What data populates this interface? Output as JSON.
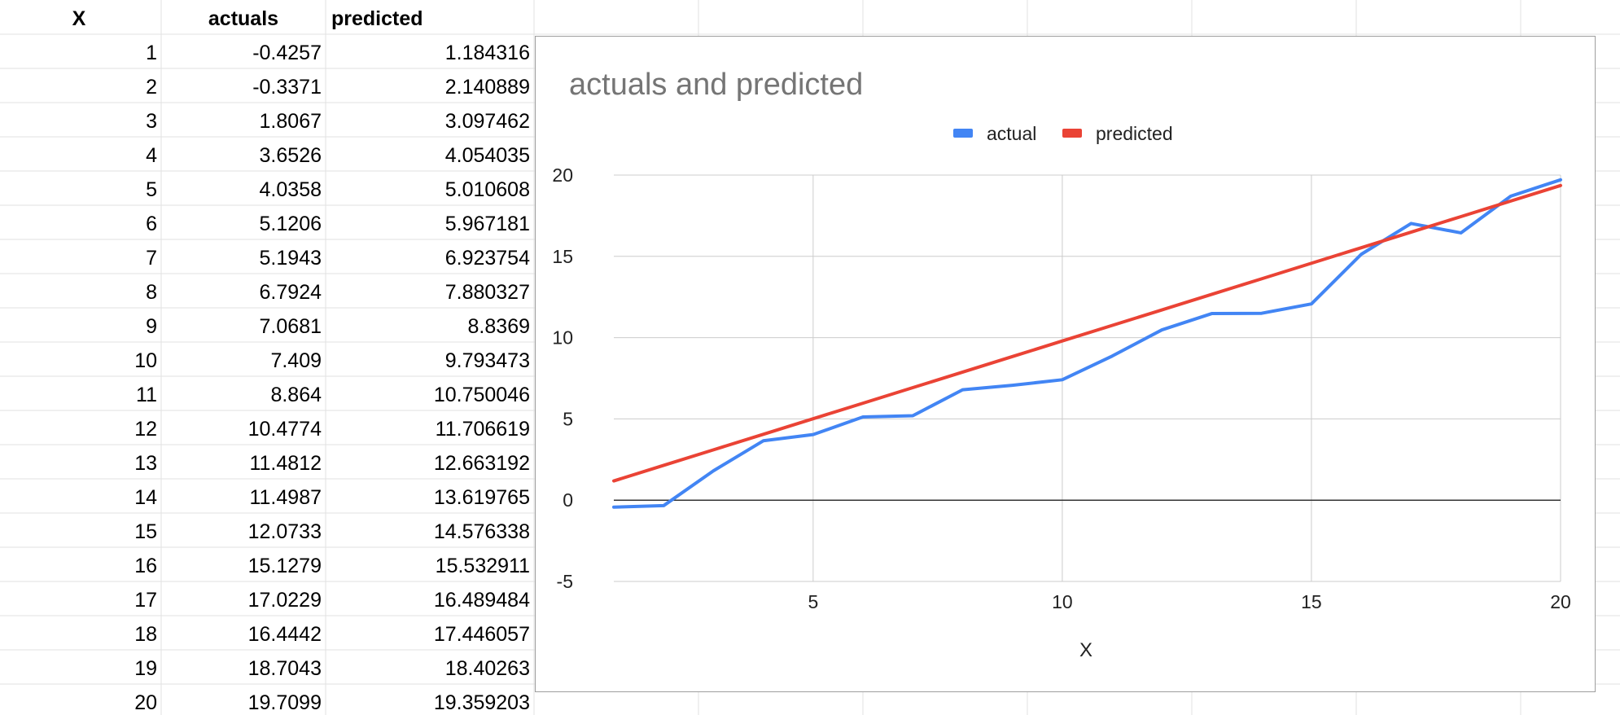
{
  "sheet": {
    "headers": [
      "X",
      "actuals",
      "predicted"
    ],
    "rows": [
      [
        "1",
        "-0.4257",
        "1.184316"
      ],
      [
        "2",
        "-0.3371",
        "2.140889"
      ],
      [
        "3",
        "1.8067",
        "3.097462"
      ],
      [
        "4",
        "3.6526",
        "4.054035"
      ],
      [
        "5",
        "4.0358",
        "5.010608"
      ],
      [
        "6",
        "5.1206",
        "5.967181"
      ],
      [
        "7",
        "5.1943",
        "6.923754"
      ],
      [
        "8",
        "6.7924",
        "7.880327"
      ],
      [
        "9",
        "7.0681",
        "8.8369"
      ],
      [
        "10",
        "7.409",
        "9.793473"
      ],
      [
        "11",
        "8.864",
        "10.750046"
      ],
      [
        "12",
        "10.4774",
        "11.706619"
      ],
      [
        "13",
        "11.4812",
        "12.663192"
      ],
      [
        "14",
        "11.4987",
        "13.619765"
      ],
      [
        "15",
        "12.0733",
        "14.576338"
      ],
      [
        "16",
        "15.1279",
        "15.532911"
      ],
      [
        "17",
        "17.0229",
        "16.489484"
      ],
      [
        "18",
        "16.4442",
        "17.446057"
      ],
      [
        "19",
        "18.7043",
        "18.40263"
      ],
      [
        "20",
        "19.7099",
        "19.359203"
      ]
    ]
  },
  "chart_data": {
    "type": "line",
    "title": "actuals and predicted",
    "xlabel": "X",
    "ylabel": "",
    "x": [
      1,
      2,
      3,
      4,
      5,
      6,
      7,
      8,
      9,
      10,
      11,
      12,
      13,
      14,
      15,
      16,
      17,
      18,
      19,
      20
    ],
    "xlim": [
      1,
      20
    ],
    "ylim": [
      -5,
      20
    ],
    "x_ticks": [
      "5",
      "10",
      "15",
      "20"
    ],
    "y_ticks": [
      "20",
      "15",
      "10",
      "5",
      "0",
      "-5"
    ],
    "grid": true,
    "legend_position": "top",
    "series": [
      {
        "name": "actual",
        "color": "#4285f4",
        "values": [
          -0.4257,
          -0.3371,
          1.8067,
          3.6526,
          4.0358,
          5.1206,
          5.1943,
          6.7924,
          7.0681,
          7.409,
          8.864,
          10.4774,
          11.4812,
          11.4987,
          12.0733,
          15.1279,
          17.0229,
          16.4442,
          18.7043,
          19.7099
        ]
      },
      {
        "name": "predicted",
        "color": "#ea4335",
        "values": [
          1.184316,
          2.140889,
          3.097462,
          4.054035,
          5.010608,
          5.967181,
          6.923754,
          7.880327,
          8.8369,
          9.793473,
          10.750046,
          11.706619,
          12.663192,
          13.619765,
          14.576338,
          15.532911,
          16.489484,
          17.446057,
          18.40263,
          19.359203
        ]
      }
    ]
  }
}
